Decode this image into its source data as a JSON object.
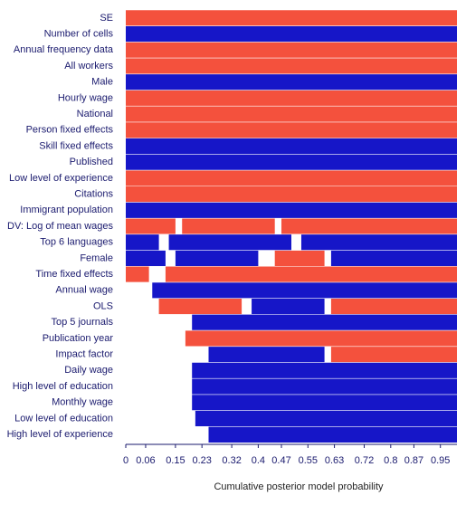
{
  "chart_data": {
    "type": "model-inclusion",
    "xlabel": "Cumulative posterior model probability",
    "xlim": [
      0,
      1
    ],
    "xticks": [
      0,
      0.06,
      0.15,
      0.23,
      0.32,
      0.4,
      0.47,
      0.55,
      0.63,
      0.72,
      0.8,
      0.87,
      0.95
    ],
    "colors": {
      "positive": "#f4513d",
      "negative": "#1616c8"
    },
    "rows": [
      {
        "label": "SE",
        "segments": [
          {
            "from": 0,
            "to": 1,
            "sign": 1
          }
        ]
      },
      {
        "label": "Number of cells",
        "segments": [
          {
            "from": 0,
            "to": 1,
            "sign": -1
          }
        ]
      },
      {
        "label": "Annual frequency data",
        "segments": [
          {
            "from": 0,
            "to": 1,
            "sign": 1
          }
        ]
      },
      {
        "label": "All workers",
        "segments": [
          {
            "from": 0,
            "to": 1,
            "sign": 1
          }
        ]
      },
      {
        "label": "Male",
        "segments": [
          {
            "from": 0,
            "to": 1,
            "sign": -1
          }
        ]
      },
      {
        "label": "Hourly wage",
        "segments": [
          {
            "from": 0,
            "to": 1,
            "sign": 1
          }
        ]
      },
      {
        "label": "National",
        "segments": [
          {
            "from": 0,
            "to": 1,
            "sign": 1
          }
        ]
      },
      {
        "label": "Person fixed effects",
        "segments": [
          {
            "from": 0,
            "to": 1,
            "sign": 1
          }
        ]
      },
      {
        "label": "Skill fixed effects",
        "segments": [
          {
            "from": 0,
            "to": 1,
            "sign": -1
          }
        ]
      },
      {
        "label": "Published",
        "segments": [
          {
            "from": 0,
            "to": 1,
            "sign": -1
          }
        ]
      },
      {
        "label": "Low level of experience",
        "segments": [
          {
            "from": 0,
            "to": 1,
            "sign": 1
          }
        ]
      },
      {
        "label": "Citations",
        "segments": [
          {
            "from": 0,
            "to": 1,
            "sign": 1
          }
        ]
      },
      {
        "label": "Immigrant population",
        "segments": [
          {
            "from": 0,
            "to": 1,
            "sign": -1
          }
        ]
      },
      {
        "label": "DV: Log of mean wages",
        "segments": [
          {
            "from": 0,
            "to": 0.15,
            "sign": 1
          },
          {
            "from": 0.17,
            "to": 0.45,
            "sign": 1
          },
          {
            "from": 0.47,
            "to": 1,
            "sign": 1
          }
        ]
      },
      {
        "label": "Top 6 languages",
        "segments": [
          {
            "from": 0,
            "to": 0.1,
            "sign": -1
          },
          {
            "from": 0.13,
            "to": 0.5,
            "sign": -1
          },
          {
            "from": 0.53,
            "to": 1,
            "sign": -1
          }
        ]
      },
      {
        "label": "Female",
        "segments": [
          {
            "from": 0,
            "to": 0.12,
            "sign": -1
          },
          {
            "from": 0.15,
            "to": 0.4,
            "sign": -1
          },
          {
            "from": 0.45,
            "to": 0.6,
            "sign": 1
          },
          {
            "from": 0.62,
            "to": 1,
            "sign": -1
          }
        ]
      },
      {
        "label": "Time fixed effects",
        "segments": [
          {
            "from": 0,
            "to": 0.07,
            "sign": 1
          },
          {
            "from": 0.12,
            "to": 1,
            "sign": 1
          }
        ]
      },
      {
        "label": "Annual wage",
        "segments": [
          {
            "from": 0.08,
            "to": 1,
            "sign": -1
          }
        ]
      },
      {
        "label": "OLS",
        "segments": [
          {
            "from": 0.1,
            "to": 0.35,
            "sign": 1
          },
          {
            "from": 0.38,
            "to": 0.6,
            "sign": -1
          },
          {
            "from": 0.62,
            "to": 1,
            "sign": 1
          }
        ]
      },
      {
        "label": "Top 5 journals",
        "segments": [
          {
            "from": 0.2,
            "to": 1,
            "sign": -1
          }
        ]
      },
      {
        "label": "Publication year",
        "segments": [
          {
            "from": 0.18,
            "to": 1,
            "sign": 1
          }
        ]
      },
      {
        "label": "Impact factor",
        "segments": [
          {
            "from": 0.25,
            "to": 0.6,
            "sign": -1
          },
          {
            "from": 0.62,
            "to": 1,
            "sign": 1
          }
        ]
      },
      {
        "label": "Daily wage",
        "segments": [
          {
            "from": 0.2,
            "to": 1,
            "sign": -1
          }
        ]
      },
      {
        "label": "High level of education",
        "segments": [
          {
            "from": 0.2,
            "to": 1,
            "sign": -1
          }
        ]
      },
      {
        "label": "Monthly wage",
        "segments": [
          {
            "from": 0.2,
            "to": 1,
            "sign": -1
          }
        ]
      },
      {
        "label": "Low level of education",
        "segments": [
          {
            "from": 0.21,
            "to": 1,
            "sign": -1
          }
        ]
      },
      {
        "label": "High level of experience",
        "segments": [
          {
            "from": 0.25,
            "to": 1,
            "sign": -1
          }
        ]
      }
    ]
  }
}
